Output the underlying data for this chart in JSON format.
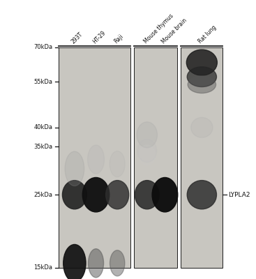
{
  "fig_width": 3.67,
  "fig_height": 4.0,
  "dpi": 100,
  "bg_color": "#ffffff",
  "lane_labels": [
    "293T",
    "HT-29",
    "Raji",
    "Mouse thymus",
    "Mouse brain",
    "Rat lung"
  ],
  "mw_labels": [
    "70kDa",
    "55kDa",
    "40kDa",
    "35kDa",
    "25kDa",
    "15kDa"
  ],
  "mw_values": [
    70,
    55,
    40,
    35,
    25,
    15
  ],
  "protein_label": "LYPLA2",
  "protein_mw": 25,
  "panel_border_color": "#1a1a1a",
  "tick_color": "#111111",
  "label_color": "#111111",
  "blot_bg_color": "#c8c6c0"
}
